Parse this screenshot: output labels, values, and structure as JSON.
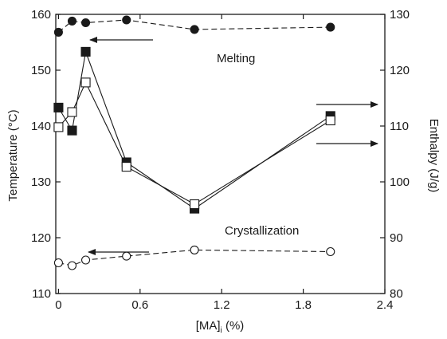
{
  "chart_data": {
    "type": "line",
    "xlabel": "[MA]",
    "xlabel_subscript": "i",
    "xlabel_suffix": " (%)",
    "ylabel_left": "Temperature (°C)",
    "ylabel_right": "Enthalpy (J/g)",
    "xlim": [
      -0.02,
      2.4
    ],
    "ylim_left": [
      110,
      160
    ],
    "ylim_right": [
      80,
      130
    ],
    "x_ticks": [
      "0",
      "0.6",
      "1.2",
      "1.8",
      "2.4"
    ],
    "x_tick_values": [
      0,
      0.6,
      1.2,
      1.8,
      2.4
    ],
    "y_left_ticks": [
      110,
      120,
      130,
      140,
      150,
      160
    ],
    "y_right_ticks": [
      80,
      90,
      100,
      110,
      120,
      130
    ],
    "annotations": [
      "Melting",
      "Crystallization"
    ],
    "series": [
      {
        "axis": "left",
        "marker": "filled-circle",
        "line": "dashed",
        "x": [
          0,
          0.1,
          0.2,
          0.5,
          1.0,
          2.0
        ],
        "values": [
          156.8,
          158.8,
          158.5,
          159.0,
          157.3,
          157.7
        ]
      },
      {
        "axis": "left",
        "marker": "open-circle",
        "line": "dashed",
        "x": [
          0,
          0.1,
          0.2,
          0.5,
          1.0,
          2.0
        ],
        "values": [
          115.5,
          115.0,
          116.0,
          116.7,
          117.8,
          117.5
        ]
      },
      {
        "axis": "right",
        "marker": "filled-square",
        "line": "solid",
        "x": [
          0,
          0.1,
          0.2,
          0.5,
          1.0,
          2.0
        ],
        "values": [
          113.3,
          109.2,
          123.3,
          103.5,
          95.2,
          111.8
        ]
      },
      {
        "axis": "right",
        "marker": "open-square",
        "line": "solid",
        "x": [
          0,
          0.1,
          0.2,
          0.5,
          1.0,
          2.0
        ],
        "values": [
          109.8,
          112.5,
          117.8,
          102.7,
          96.0,
          111.0
        ]
      }
    ],
    "colors": {
      "ink": "#1a1a1a",
      "background": "#ffffff"
    }
  }
}
